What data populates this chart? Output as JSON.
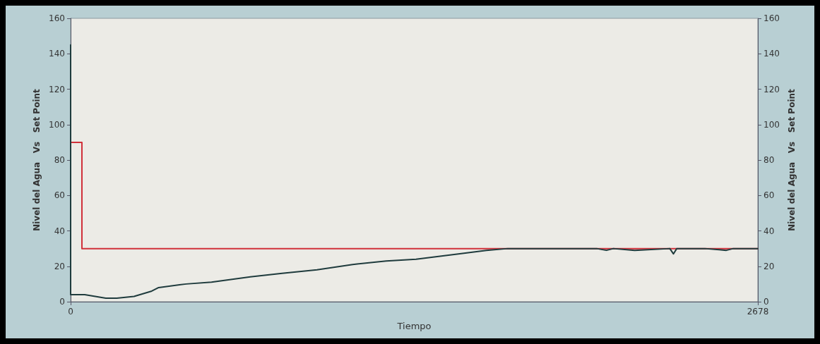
{
  "chart_data": {
    "type": "line",
    "xlabel": "Tiempo",
    "ylabel": "Nivel del Agua   Vs   Set Point",
    "y2label": "Nivel del Agua   Vs   Set Point",
    "xlim": [
      0,
      2678
    ],
    "xticks": [
      0,
      2678
    ],
    "ylim": [
      0,
      160
    ],
    "yticks": [
      0,
      20,
      40,
      60,
      80,
      100,
      120,
      140,
      160
    ],
    "y2lim": [
      0,
      160
    ],
    "y2ticks": [
      0,
      20,
      40,
      60,
      80,
      100,
      120,
      140,
      160
    ],
    "marker": "none",
    "line_style": "solid",
    "grid": false,
    "series": [
      {
        "color": "#d0303a",
        "x": [
          0,
          44,
          44,
          2678
        ],
        "values": [
          90,
          90,
          30,
          30
        ]
      },
      {
        "color": "#1f3b3d",
        "x": [
          0,
          0,
          55,
          137,
          180,
          247,
          316,
          343,
          450,
          549,
          700,
          824,
          960,
          1099,
          1230,
          1346,
          1511,
          1620,
          1703,
          2050,
          2088,
          2115,
          2198,
          2335,
          2349,
          2362,
          2472,
          2555,
          2582,
          2678
        ],
        "values": [
          145,
          4,
          4,
          2,
          2,
          3,
          6,
          8,
          10,
          11,
          14,
          16,
          18,
          21,
          23,
          24,
          27,
          29,
          30,
          30,
          29,
          30,
          29,
          30,
          27,
          30,
          30,
          29,
          30,
          30
        ]
      }
    ]
  }
}
